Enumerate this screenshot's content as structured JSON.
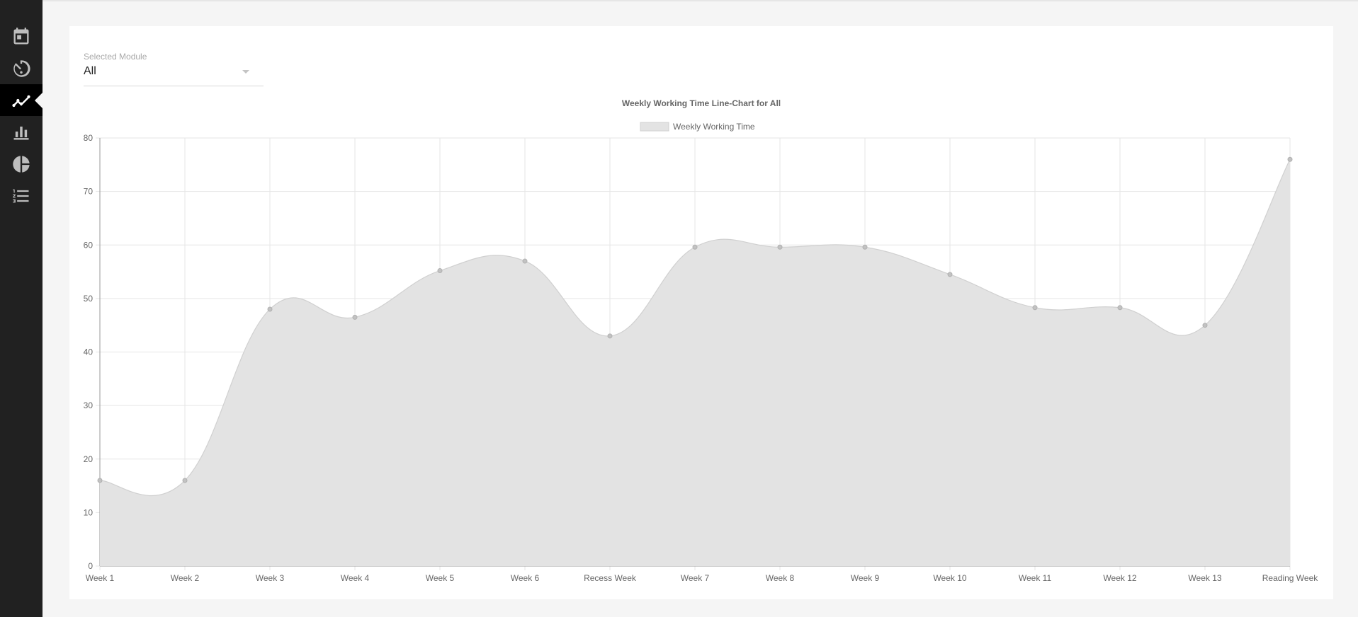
{
  "sidebar": {
    "items": [
      {
        "icon": "calendar-icon"
      },
      {
        "icon": "timer-icon"
      },
      {
        "icon": "line-chart-icon",
        "active": true
      },
      {
        "icon": "bar-chart-icon"
      },
      {
        "icon": "pie-chart-icon"
      },
      {
        "icon": "numbered-list-icon"
      }
    ]
  },
  "module_select": {
    "label": "Selected Module",
    "value": "All"
  },
  "chart_data": {
    "type": "area",
    "title": "Weekly Working Time Line-Chart for All",
    "categories": [
      "Week 1",
      "Week 2",
      "Week 3",
      "Week 4",
      "Week 5",
      "Week 6",
      "Recess Week",
      "Week 7",
      "Week 8",
      "Week 9",
      "Week 10",
      "Week 11",
      "Week 12",
      "Week 13",
      "Reading Week"
    ],
    "series": [
      {
        "name": "Weekly Working Time",
        "values": [
          16,
          16,
          48,
          46.5,
          55.2,
          57,
          43,
          59.6,
          59.6,
          59.6,
          54.5,
          48.3,
          48.3,
          45,
          76
        ]
      }
    ],
    "ylim": [
      0,
      80
    ],
    "yticks": [
      0,
      10,
      20,
      30,
      40,
      50,
      60,
      70,
      80
    ],
    "grid": true,
    "legend_position": "top-center",
    "colors": {
      "fill": "#e3e3e3",
      "line": "#d0d0d0",
      "point": "#c2c2c2",
      "grid": "#e6e6e6",
      "text": "#666666"
    }
  }
}
